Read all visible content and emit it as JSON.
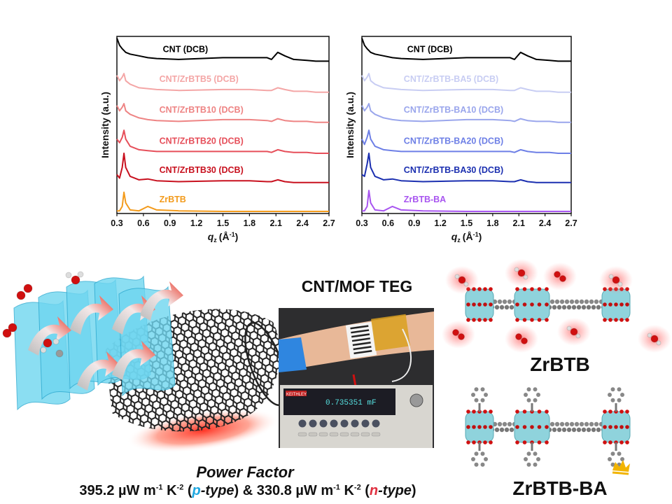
{
  "chart_data": [
    {
      "type": "line",
      "xlabel": "q_z (Å^-1)",
      "xlabel_main": "q",
      "xlabel_sub": "z",
      "xlabel_unit": "(Å",
      "xlabel_exp": "-1",
      "xlabel_close": ")",
      "ylabel": "Intensity (a.u.)",
      "xlim": [
        0.3,
        2.7
      ],
      "ylim": [
        0,
        100
      ],
      "xticks": [
        "0.3",
        "0.6",
        "0.9",
        "1.2",
        "1.5",
        "1.8",
        "2.1",
        "2.4",
        "2.7"
      ],
      "grid": false,
      "legend": "inline labels",
      "x": [
        0.3,
        0.33,
        0.36,
        0.38,
        0.4,
        0.45,
        0.55,
        0.65,
        0.75,
        1.0,
        1.5,
        1.8,
        2.0,
        2.05,
        2.12,
        2.2,
        2.3,
        2.45,
        2.55,
        2.7
      ],
      "series": [
        {
          "name": "CNT (DCB)",
          "color": "#000000",
          "values": [
            99,
            95,
            93,
            92,
            91,
            90,
            89,
            88,
            87.5,
            87,
            88,
            88,
            88,
            87,
            91,
            89,
            87,
            86.5,
            86,
            86
          ]
        },
        {
          "name": "CNT/ZrBTB5 (DCB)",
          "color": "#f4a6a6",
          "values": [
            78,
            75,
            77,
            79,
            75,
            73,
            71,
            70.5,
            70,
            69.5,
            70,
            70,
            69.5,
            69.5,
            71,
            70,
            69,
            69,
            68.5,
            68.5
          ]
        },
        {
          "name": "CNT/ZrBTB10 (DCB)",
          "color": "#ee8484",
          "values": [
            61,
            58,
            60,
            62,
            58,
            56,
            54,
            53,
            52.5,
            52,
            53,
            53,
            52.5,
            52,
            53.5,
            52.5,
            52,
            52,
            51.5,
            51.5
          ]
        },
        {
          "name": "CNT/ZrBTB20 (DCB)",
          "color": "#e64f5a",
          "values": [
            42,
            40,
            43,
            47,
            42,
            38,
            36,
            35.5,
            35,
            35,
            35,
            35,
            35,
            34.5,
            36,
            35,
            34.5,
            34.5,
            34,
            34
          ]
        },
        {
          "name": "CNT/ZrBTB30 (DCB)",
          "color": "#c8101e",
          "values": [
            22,
            20,
            26,
            34,
            26,
            21,
            19,
            19.5,
            18.5,
            18,
            18.5,
            18.5,
            18,
            18,
            19,
            18,
            17.5,
            17.5,
            17.5,
            17.5
          ]
        },
        {
          "name": "ZrBTB",
          "color": "#f39b1c",
          "values": [
            1.5,
            1.5,
            4,
            12,
            6,
            2,
            1.5,
            4,
            2,
            1.5,
            1.2,
            1.2,
            1.2,
            1.2,
            1.2,
            1.2,
            1.2,
            1.2,
            1.2,
            1.2
          ]
        }
      ]
    },
    {
      "type": "line",
      "xlabel": "q_z (Å^-1)",
      "xlabel_main": "q",
      "xlabel_sub": "z",
      "xlabel_unit": "(Å",
      "xlabel_exp": "-1",
      "xlabel_close": ")",
      "ylabel": "Intensity (a.u.)",
      "xlim": [
        0.3,
        2.7
      ],
      "ylim": [
        0,
        100
      ],
      "xticks": [
        "0.3",
        "0.6",
        "0.9",
        "1.2",
        "1.5",
        "1.8",
        "2.1",
        "2.4",
        "2.7"
      ],
      "grid": false,
      "legend": "inline labels",
      "x": [
        0.3,
        0.33,
        0.36,
        0.38,
        0.4,
        0.45,
        0.55,
        0.65,
        0.75,
        1.0,
        1.5,
        1.8,
        2.0,
        2.05,
        2.12,
        2.2,
        2.3,
        2.45,
        2.55,
        2.7
      ],
      "series": [
        {
          "name": "CNT (DCB)",
          "color": "#000000",
          "values": [
            99,
            95,
            93,
            92,
            91,
            90,
            89,
            88,
            87.5,
            87,
            88,
            88,
            88,
            87,
            91,
            89,
            87,
            86.5,
            86,
            86
          ]
        },
        {
          "name": "CNT/ZrBTB-BA5 (DCB)",
          "color": "#c8cdf3",
          "values": [
            78,
            75,
            77,
            79,
            75,
            73,
            71,
            70.5,
            70,
            69.5,
            70,
            70,
            69.5,
            69.5,
            71,
            70,
            69,
            69,
            68.5,
            68.5
          ]
        },
        {
          "name": "CNT/ZrBTB-BA10 (DCB)",
          "color": "#9aa6ec",
          "values": [
            61,
            58,
            60,
            62,
            58,
            56,
            54,
            53,
            52.5,
            52,
            53,
            53,
            52.5,
            52,
            53.5,
            52.5,
            52,
            52,
            51.5,
            51.5
          ]
        },
        {
          "name": "CNT/ZrBTB-BA20 (DCB)",
          "color": "#6d7fe6",
          "values": [
            42,
            39,
            43,
            47,
            42,
            38,
            36,
            35.5,
            35,
            35,
            35,
            35,
            35,
            34.5,
            36,
            35,
            34.5,
            34.5,
            34,
            34
          ]
        },
        {
          "name": "CNT/ZrBTB-BA30 (DCB)",
          "color": "#1b2fb0",
          "values": [
            22,
            21,
            28,
            34,
            26,
            21,
            19,
            19.5,
            18.5,
            18,
            18.5,
            18.5,
            18,
            18,
            19,
            18,
            17.5,
            17.5,
            17.5,
            17.5
          ]
        },
        {
          "name": "ZrBTB-BA",
          "color": "#a855f0",
          "values": [
            1.5,
            1.5,
            4,
            13,
            6,
            2,
            1.5,
            4,
            2,
            1.5,
            1.2,
            1.2,
            1.2,
            1.2,
            1.2,
            1.2,
            1.2,
            1.2,
            1.2,
            1.2
          ]
        }
      ]
    }
  ],
  "teg": {
    "title": "CNT/MOF TEG",
    "meter_reading": "0.735351 mF",
    "meter_brand": "KEITHLEY"
  },
  "structures": {
    "top_label": "ZrBTB",
    "bottom_label": "ZrBTB-BA"
  },
  "power_factor": {
    "title": "Power Factor",
    "p_value": "395.2 µW m",
    "p_exp1": "-1",
    "p_k": " K",
    "p_exp2": "-2",
    "p_open": " (",
    "p_letter": "p",
    "p_rest": "-type",
    "amp": ") & ",
    "n_value": "330.8 µW m",
    "n_exp1": "-1",
    "n_k": " K",
    "n_exp2": "-2",
    "n_open": " (",
    "n_letter": "n",
    "n_rest": "-type",
    "close": ")",
    "p_color": "#1ea7e0",
    "n_color": "#e03040"
  },
  "colors": {
    "mof_cyan": "#8fd3dc",
    "oxygen": "#d01010",
    "carbon": "#7a7a7a",
    "cnt": "#2a2a2a",
    "glow": "#ff4a4a"
  }
}
